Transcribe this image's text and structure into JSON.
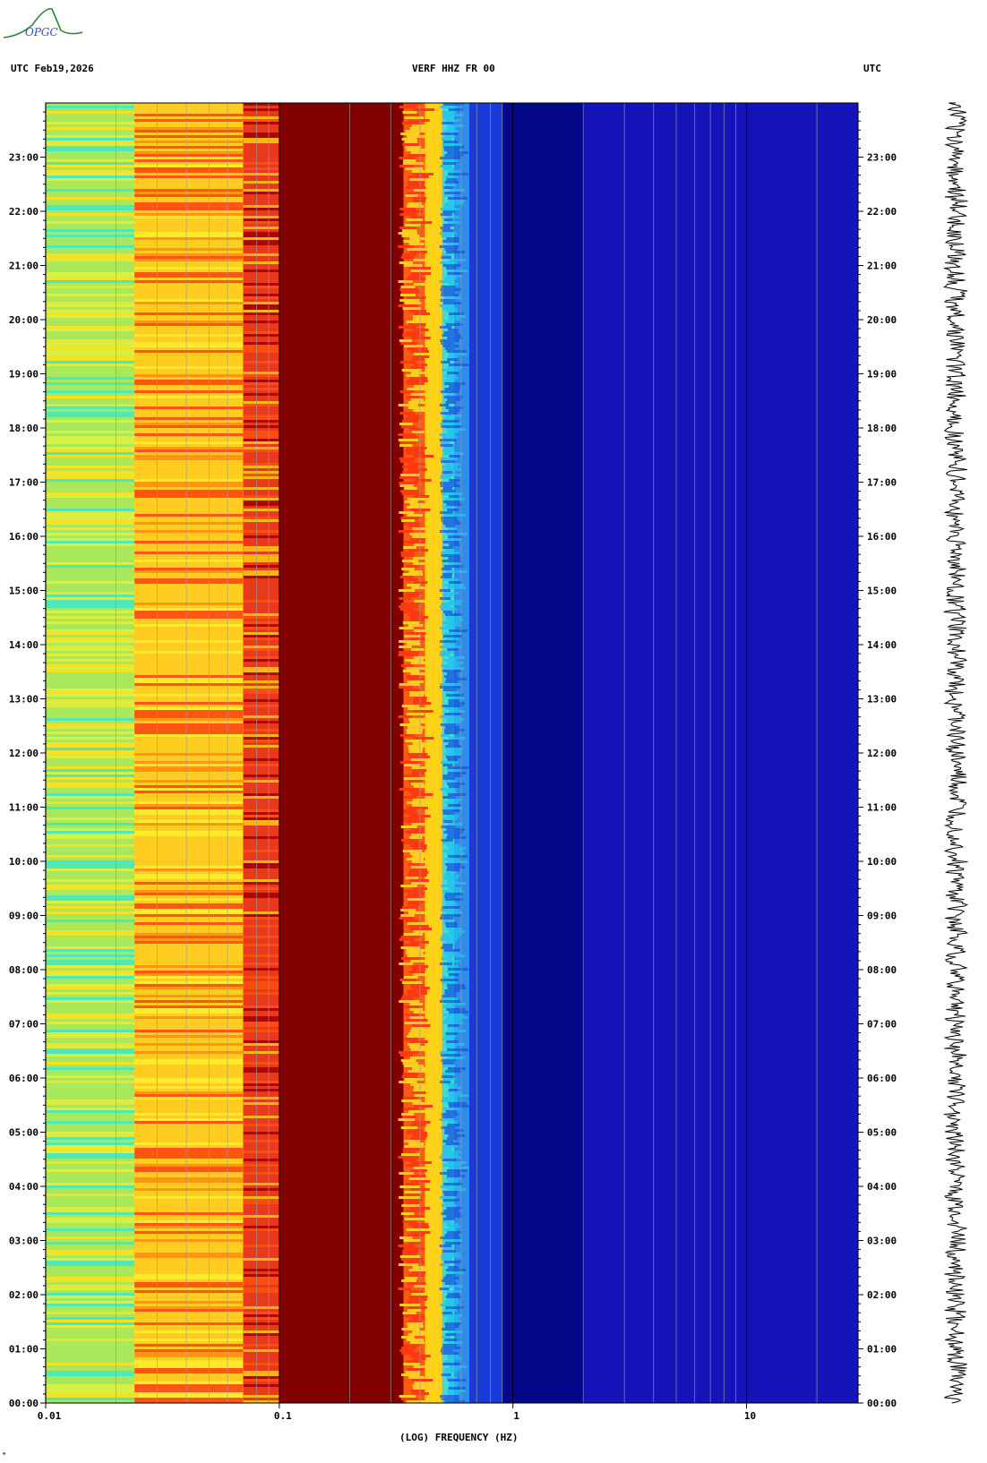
{
  "header": {
    "left": "UTC  Feb19,2026",
    "title": "VERF HHZ FR 00",
    "right": "UTC"
  },
  "logo": {
    "text": "OPGC"
  },
  "colors": {
    "background": "#ffffff",
    "plot_deep_blue": "#1414b8",
    "plot_dark_red": "#800000",
    "gridline": "#9a9a9a"
  },
  "chart_data": {
    "type": "heatmap",
    "title": "VERF HHZ FR 00",
    "xlabel": "(LOG) FREQUENCY (HZ)",
    "x_scale": "log",
    "xlim": [
      0.01,
      30
    ],
    "x_ticks": [
      {
        "value": 0.01,
        "label": "0.01"
      },
      {
        "value": 0.1,
        "label": "0.1"
      },
      {
        "value": 1,
        "label": "1"
      },
      {
        "value": 10,
        "label": "10"
      }
    ],
    "y_ticks": [
      "00:00",
      "01:00",
      "02:00",
      "03:00",
      "04:00",
      "05:00",
      "06:00",
      "07:00",
      "08:00",
      "09:00",
      "10:00",
      "11:00",
      "12:00",
      "13:00",
      "14:00",
      "15:00",
      "16:00",
      "17:00",
      "18:00",
      "19:00",
      "20:00",
      "21:00",
      "22:00",
      "23:00"
    ],
    "frequency_bands": [
      {
        "from": 0.01,
        "to": 0.024,
        "color": "#a8e85a"
      },
      {
        "from": 0.024,
        "to": 0.07,
        "color": "#ffcc22"
      },
      {
        "from": 0.07,
        "to": 0.1,
        "color": "#e83a1a"
      },
      {
        "from": 0.1,
        "to": 0.34,
        "color": "#800000"
      },
      {
        "from": 0.34,
        "to": 0.42,
        "color": "#ff5a10"
      },
      {
        "from": 0.42,
        "to": 0.5,
        "color": "#ffd21a"
      },
      {
        "from": 0.5,
        "to": 0.56,
        "color": "#40e0d0"
      },
      {
        "from": 0.56,
        "to": 0.65,
        "color": "#2a8ef0"
      },
      {
        "from": 0.65,
        "to": 0.9,
        "color": "#1a3ad8"
      },
      {
        "from": 0.9,
        "to": 2.0,
        "color": "#06088a"
      },
      {
        "from": 2.0,
        "to": 30,
        "color": "#1414b8"
      }
    ],
    "grid": true
  }
}
